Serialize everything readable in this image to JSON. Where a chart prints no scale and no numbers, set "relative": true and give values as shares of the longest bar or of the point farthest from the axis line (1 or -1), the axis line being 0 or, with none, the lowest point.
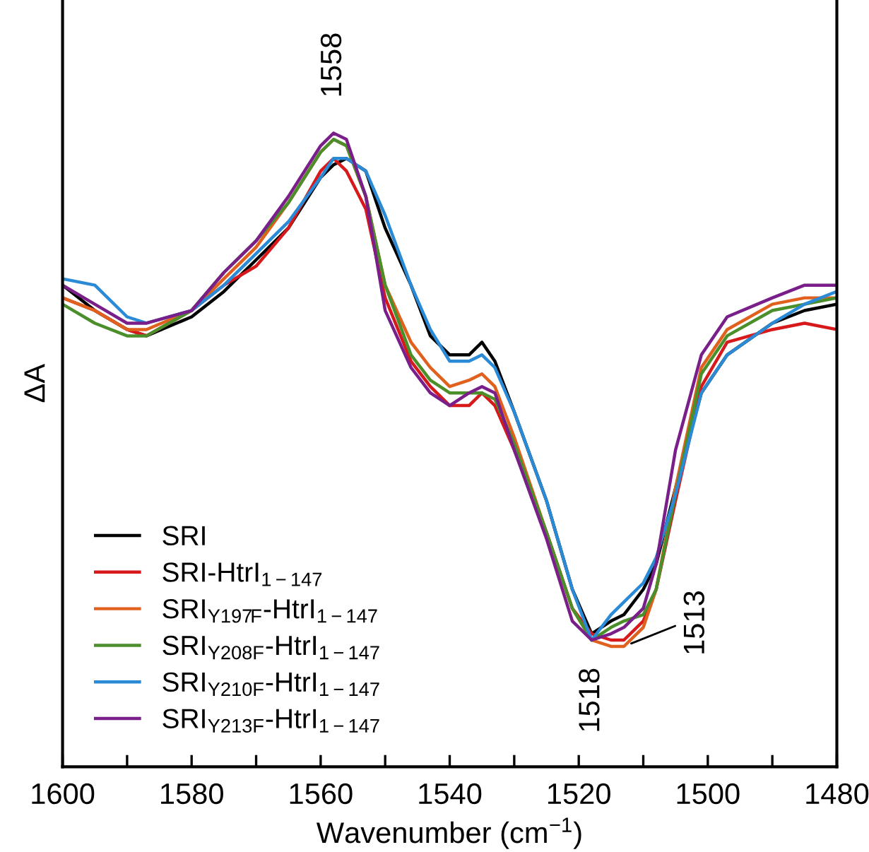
{
  "chart_data": {
    "type": "line",
    "relative": true,
    "xlabel": "Wavenumber (cm$^{−1}$)",
    "ylabel": "ΔA",
    "x": [
      1600,
      1595,
      1590,
      1587,
      1580,
      1575,
      1570,
      1565,
      1560,
      1558,
      1556,
      1553,
      1550,
      1546,
      1543,
      1540,
      1537,
      1535,
      1533,
      1530,
      1525,
      1521,
      1518,
      1515,
      1513,
      1510,
      1508,
      1505,
      1501,
      1497,
      1490,
      1485,
      1480
    ],
    "xlim": [
      1600,
      1480
    ],
    "xticks": [
      1600,
      {
        "value": 1590,
        "label": null
      },
      1580,
      {
        "value": 1570,
        "label": null
      },
      1560,
      {
        "value": 1550,
        "label": null
      },
      1540,
      {
        "value": 1530,
        "label": null
      },
      1520,
      {
        "value": 1510,
        "label": null
      },
      1500,
      {
        "value": 1490,
        "label": null
      },
      1480
    ],
    "tick_labels": "x",
    "grid": false,
    "legend": "bottom left",
    "marker": "none",
    "line_style": "solid",
    "series": [
      {
        "name": "SRI",
        "color": "#000000",
        "values": [
          0.76,
          0.72,
          0.69,
          0.68,
          0.71,
          0.75,
          0.8,
          0.85,
          0.93,
          0.95,
          0.96,
          0.94,
          0.85,
          0.76,
          0.68,
          0.65,
          0.65,
          0.67,
          0.64,
          0.56,
          0.42,
          0.28,
          0.21,
          0.23,
          0.24,
          0.28,
          0.32,
          0.44,
          0.59,
          0.65,
          0.7,
          0.72,
          0.73
        ]
      },
      {
        "name": "SRI-HtrI$_{1−147}$",
        "color": "#d7191c",
        "values": [
          0.74,
          0.72,
          0.69,
          0.68,
          0.72,
          0.76,
          0.79,
          0.85,
          0.94,
          0.96,
          0.94,
          0.88,
          0.74,
          0.64,
          0.6,
          0.57,
          0.57,
          0.59,
          0.57,
          0.5,
          0.37,
          0.25,
          0.21,
          0.2,
          0.2,
          0.23,
          0.28,
          0.42,
          0.6,
          0.67,
          0.69,
          0.7,
          0.69
        ]
      },
      {
        "name": "SRI$_{Y197F}$-HtrI$_{1−147}$",
        "color": "#e0601e",
        "values": [
          0.74,
          0.72,
          0.69,
          0.69,
          0.72,
          0.77,
          0.82,
          0.89,
          0.97,
          0.99,
          0.98,
          0.9,
          0.76,
          0.67,
          0.63,
          0.6,
          0.61,
          0.62,
          0.6,
          0.52,
          0.37,
          0.25,
          0.2,
          0.19,
          0.19,
          0.22,
          0.28,
          0.44,
          0.63,
          0.69,
          0.73,
          0.74,
          0.74
        ]
      },
      {
        "name": "SRI$_{Y208F}$-HtrI$_{1−147}$",
        "color": "#4a8f2a",
        "values": [
          0.73,
          0.7,
          0.68,
          0.68,
          0.72,
          0.78,
          0.83,
          0.89,
          0.97,
          0.99,
          0.98,
          0.9,
          0.76,
          0.65,
          0.61,
          0.59,
          0.59,
          0.59,
          0.58,
          0.51,
          0.37,
          0.25,
          0.2,
          0.22,
          0.23,
          0.24,
          0.28,
          0.43,
          0.62,
          0.68,
          0.72,
          0.73,
          0.74
        ]
      },
      {
        "name": "SRI$_{Y210F}$-HtrI$_{1−147}$",
        "color": "#2a8ad6",
        "values": [
          0.77,
          0.76,
          0.71,
          0.7,
          0.72,
          0.76,
          0.81,
          0.86,
          0.93,
          0.96,
          0.96,
          0.94,
          0.87,
          0.76,
          0.69,
          0.64,
          0.64,
          0.65,
          0.63,
          0.56,
          0.42,
          0.28,
          0.2,
          0.24,
          0.26,
          0.29,
          0.33,
          0.43,
          0.59,
          0.65,
          0.7,
          0.73,
          0.75
        ]
      },
      {
        "name": "SRI$_{Y213F}$-HtrI$_{1−147}$",
        "color": "#7a1f8a",
        "values": [
          0.76,
          0.73,
          0.7,
          0.7,
          0.72,
          0.78,
          0.83,
          0.9,
          0.98,
          1.0,
          0.99,
          0.9,
          0.72,
          0.63,
          0.59,
          0.57,
          0.59,
          0.6,
          0.59,
          0.5,
          0.36,
          0.23,
          0.2,
          0.21,
          0.22,
          0.25,
          0.32,
          0.5,
          0.65,
          0.71,
          0.74,
          0.76,
          0.76
        ]
      }
    ],
    "annotations": [
      {
        "text": "1558",
        "x": 1558,
        "y": 1.0
      },
      {
        "text": "1518",
        "x": 1518,
        "y": 0.2
      },
      {
        "text": "1513",
        "x": 1513,
        "y": 0.19
      }
    ]
  }
}
